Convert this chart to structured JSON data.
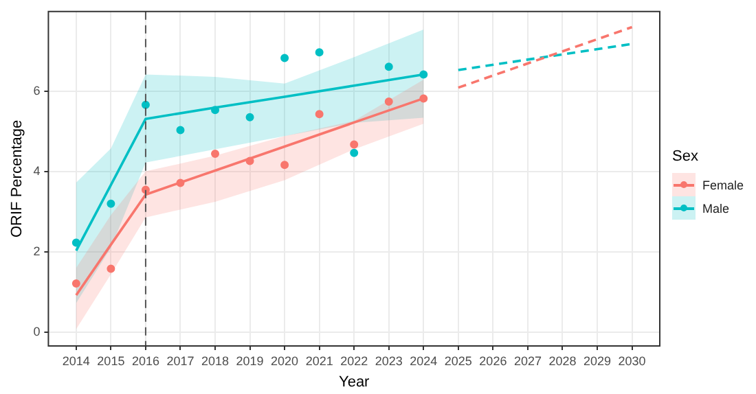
{
  "chart_data": {
    "type": "line",
    "xlabel": "Year",
    "ylabel": "ORIF Percentage",
    "legend_title": "Sex",
    "legend": "right",
    "grid": true,
    "xlim": [
      2013.2,
      2030.8
    ],
    "xticks": [
      2014,
      2015,
      2016,
      2017,
      2018,
      2019,
      2020,
      2021,
      2022,
      2023,
      2024,
      2025,
      2026,
      2027,
      2028,
      2029,
      2030
    ],
    "ylim": [
      -0.35,
      8
    ],
    "yticks": [
      0,
      2,
      4,
      6
    ],
    "ref_lines": [
      {
        "axis": "x",
        "value": 2016,
        "color": "#555555",
        "line_style": "dashed"
      }
    ],
    "series": [
      {
        "name": "Female",
        "color": "#f8766d",
        "marker": "none",
        "line_style": "solid",
        "x": [
          2014,
          2015,
          2016,
          2018,
          2020,
          2022,
          2024
        ],
        "values": [
          0.92,
          2.18,
          3.43,
          4.03,
          4.63,
          5.23,
          5.83
        ],
        "lower": [
          0.07,
          1.44,
          2.86,
          3.25,
          3.79,
          4.56,
          5.2
        ],
        "upper": [
          1.6,
          2.92,
          4.01,
          4.4,
          4.89,
          5.27,
          6.3
        ]
      },
      {
        "name": "Male",
        "color": "#00bfc4",
        "marker": "none",
        "line_style": "solid",
        "x": [
          2014,
          2015,
          2016,
          2018,
          2020,
          2022,
          2024
        ],
        "values": [
          2.03,
          3.67,
          5.32,
          5.6,
          5.87,
          6.15,
          6.43
        ],
        "lower": [
          0.72,
          2.1,
          4.23,
          4.56,
          4.89,
          5.22,
          5.35
        ],
        "upper": [
          3.73,
          4.58,
          6.43,
          6.37,
          6.2,
          6.86,
          7.55
        ]
      },
      {
        "type": "scatter",
        "color": "#f8766d",
        "marker": "circle",
        "x": [
          2014,
          2015,
          2016,
          2017,
          2018,
          2019,
          2020,
          2021,
          2022,
          2023,
          2024
        ],
        "values": [
          1.21,
          1.58,
          3.55,
          3.72,
          4.45,
          4.27,
          4.17,
          5.44,
          4.68,
          5.75,
          5.83
        ]
      },
      {
        "type": "scatter",
        "color": "#00bfc4",
        "marker": "circle",
        "x": [
          2014,
          2015,
          2016,
          2017,
          2018,
          2019,
          2020,
          2021,
          2022,
          2023,
          2024
        ],
        "values": [
          2.23,
          3.2,
          5.67,
          5.04,
          5.54,
          5.36,
          6.84,
          6.98,
          4.47,
          6.62,
          6.43
        ]
      },
      {
        "color": "#f8766d",
        "marker": "none",
        "line_style": "dashed",
        "x": [
          2025,
          2030
        ],
        "values": [
          6.1,
          7.61
        ]
      },
      {
        "color": "#00bfc4",
        "marker": "none",
        "line_style": "dashed",
        "x": [
          2025,
          2030
        ],
        "values": [
          6.54,
          7.19
        ]
      }
    ]
  }
}
